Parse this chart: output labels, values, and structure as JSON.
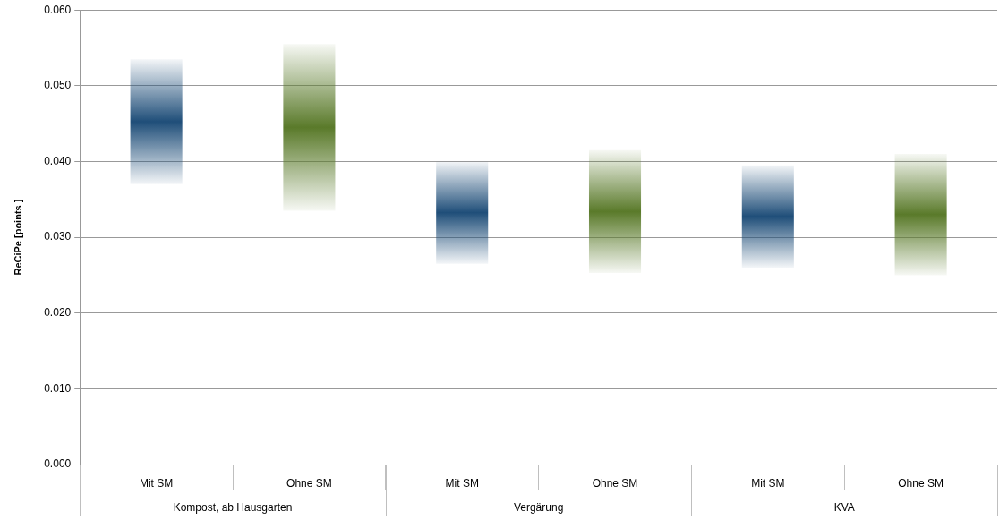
{
  "chart_data": {
    "type": "bar",
    "ylabel": "ReCiPe [points ]",
    "categories": [
      "Mit SM",
      "Ohne SM",
      "Mit SM",
      "Ohne SM",
      "Mit SM",
      "Ohne SM"
    ],
    "base": [
      0.037,
      0.0335,
      0.0265,
      0.0253,
      0.026,
      0.025
    ],
    "values": [
      0.0165,
      0.022,
      0.0135,
      0.0162,
      0.0135,
      0.016
    ],
    "colors": [
      "#1f4e79",
      "#5a7a2a",
      "#1f4e79",
      "#5a7a2a",
      "#1f4e79",
      "#5a7a2a"
    ],
    "ylim": [
      0,
      0.06
    ],
    "yticks": [
      {
        "value": 0,
        "label": "0.000"
      },
      {
        "value": 0.01,
        "label": "0.010"
      },
      {
        "value": 0.02,
        "label": "0.020"
      },
      {
        "value": 0.03,
        "label": "0.030"
      },
      {
        "value": 0.04,
        "label": "0.040"
      },
      {
        "value": 0.05,
        "label": "0.050"
      },
      {
        "value": 0.06,
        "label": "0.060"
      }
    ],
    "annotations": [
      "Kompost, ab Hausgarten",
      "Vergärung",
      "KVA"
    ],
    "grid": "y",
    "legend": false
  }
}
